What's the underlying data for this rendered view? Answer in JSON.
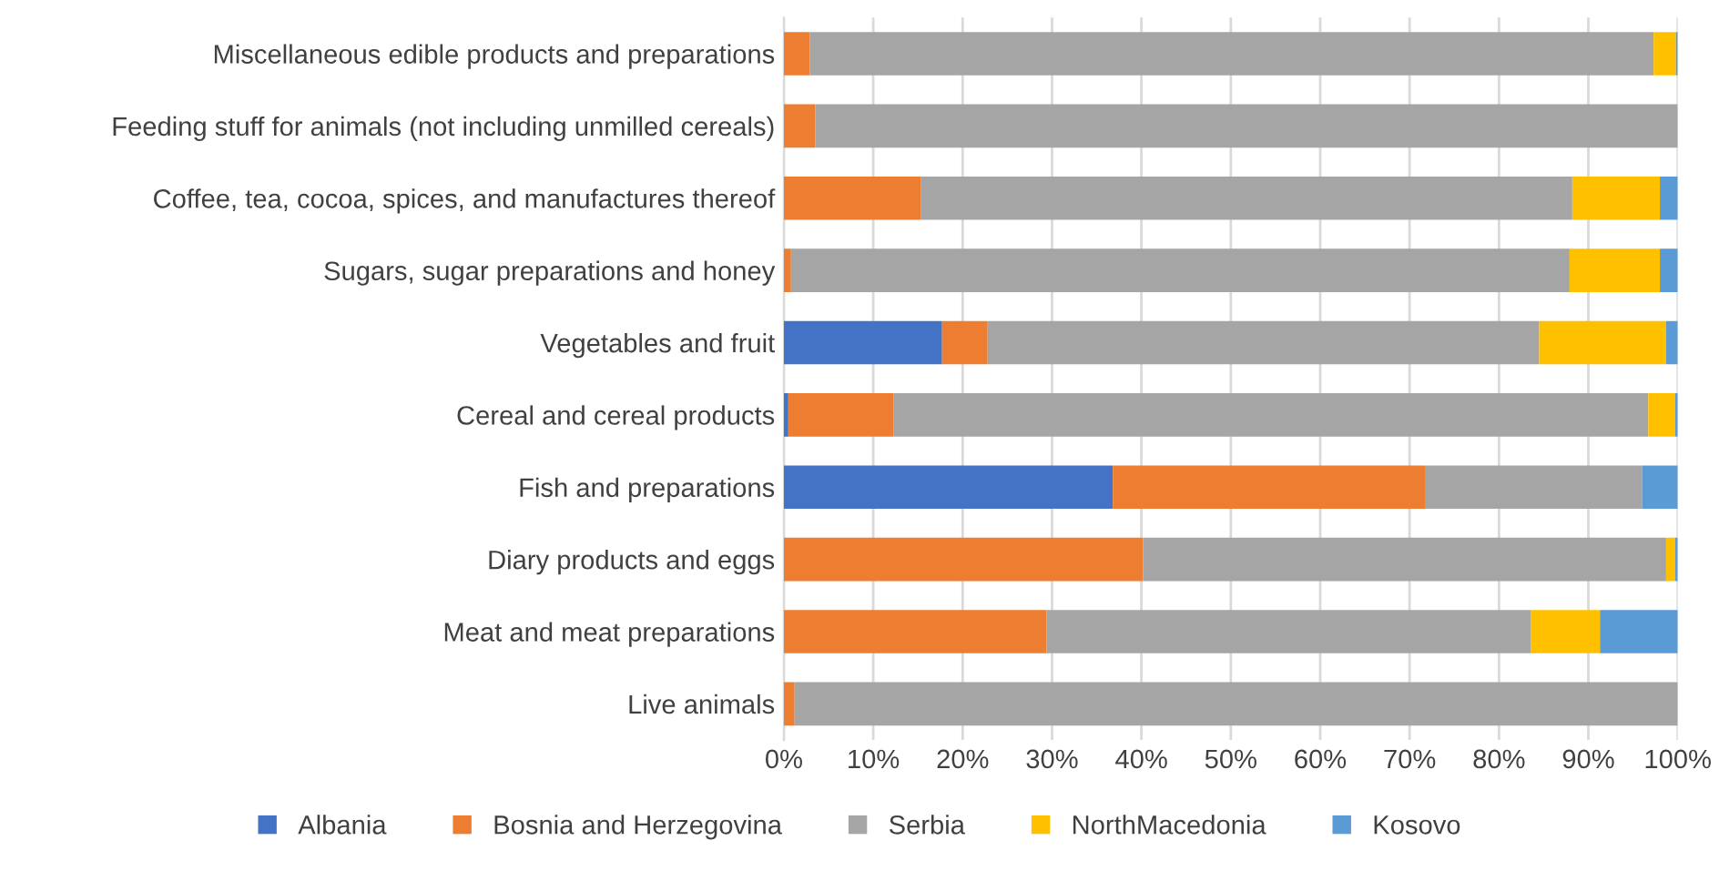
{
  "chart_data": {
    "type": "bar",
    "orientation": "horizontal",
    "stacked": true,
    "categories": [
      "Miscellaneous edible products and preparations",
      "Feeding stuff for animals (not including unmilled cereals)",
      "Coffee, tea, cocoa, spices, and manufactures thereof",
      "Sugars, sugar preparations and honey",
      "Vegetables and fruit",
      "Cereal and cereal products",
      "Fish and preparations",
      "Diary products and eggs",
      "Meat and meat preparations",
      "Live animals"
    ],
    "series": [
      {
        "name": "Albania",
        "color": "#4472c4",
        "values": [
          0,
          0,
          0,
          0,
          17.7,
          0.5,
          36.8,
          0,
          0,
          0
        ]
      },
      {
        "name": "Bosnia and Herzegovina",
        "color": "#ed7d31",
        "values": [
          2.9,
          3.5,
          15.3,
          0.8,
          5.1,
          11.8,
          35.0,
          40.2,
          29.4,
          1.2
        ]
      },
      {
        "name": "Serbia",
        "color": "#a5a5a5",
        "values": [
          94.4,
          96.5,
          72.9,
          87.1,
          61.7,
          84.4,
          24.2,
          58.5,
          54.2,
          98.8
        ]
      },
      {
        "name": "NorthMacedonia",
        "color": "#ffc000",
        "values": [
          2.5,
          0,
          9.8,
          10.1,
          14.2,
          3.0,
          0,
          1.0,
          7.7,
          0
        ]
      },
      {
        "name": "Kosovo",
        "color": "#5b9bd5",
        "values": [
          0.2,
          0,
          2.0,
          2.0,
          1.3,
          0.3,
          4.0,
          0.3,
          8.7,
          0
        ]
      }
    ],
    "xlim": [
      0,
      100
    ],
    "xticks": [
      {
        "value": 0,
        "label": "0%"
      },
      {
        "value": 10,
        "label": "10%"
      },
      {
        "value": 20,
        "label": "20%"
      },
      {
        "value": 30,
        "label": "30%"
      },
      {
        "value": 40,
        "label": "40%"
      },
      {
        "value": 50,
        "label": "50%"
      },
      {
        "value": 60,
        "label": "60%"
      },
      {
        "value": 70,
        "label": "70%"
      },
      {
        "value": 80,
        "label": "80%"
      },
      {
        "value": 90,
        "label": "90%"
      },
      {
        "value": 100,
        "label": "100%"
      }
    ],
    "grid": "x",
    "legend": "bottom"
  }
}
